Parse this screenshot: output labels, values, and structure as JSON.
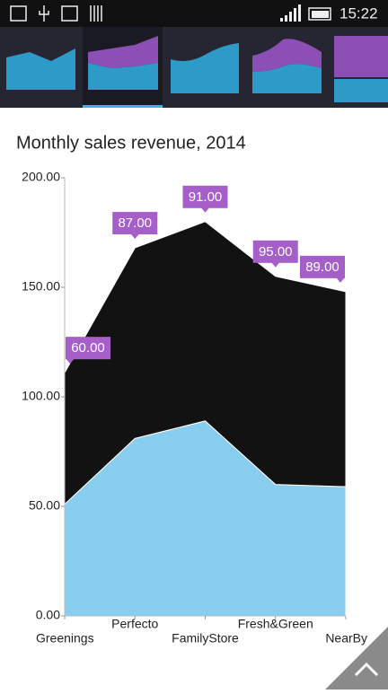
{
  "status_bar": {
    "time": "15:22"
  },
  "chart_data": {
    "type": "stacked-area",
    "title": "Monthly sales revenue, 2014",
    "categories": [
      "Greenings",
      "Perfecto",
      "FamilyStore",
      "Fresh&Green",
      "NearBy"
    ],
    "series": [
      {
        "color": "#88ccee",
        "values": [
          51,
          81,
          89,
          60,
          59
        ]
      },
      {
        "color": "#121212",
        "values": [
          60,
          87,
          91,
          95,
          89
        ],
        "value_labels": [
          "60.00",
          "87.00",
          "91.00",
          "95.00",
          "89.00"
        ],
        "label_color": "#a65fc9"
      }
    ],
    "ylim": [
      0,
      200
    ],
    "yticks": [
      {
        "value": 0,
        "label": "0.00"
      },
      {
        "value": 50,
        "label": "50.00"
      },
      {
        "value": 100,
        "label": "100.00"
      },
      {
        "value": 150,
        "label": "150.00"
      },
      {
        "value": 200,
        "label": "200.00"
      }
    ]
  }
}
